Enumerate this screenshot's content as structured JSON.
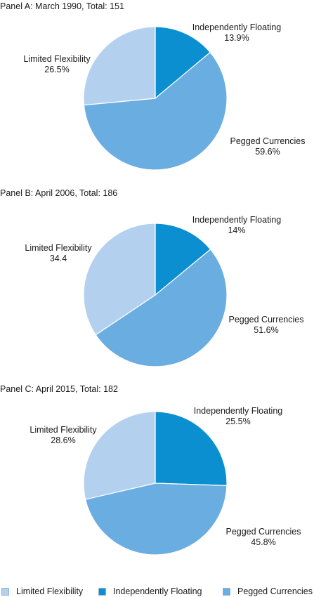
{
  "colors": {
    "limited": "#b3d1ee",
    "floating": "#0b8fd0",
    "pegged": "#6aade1",
    "stroke": "#ffffff"
  },
  "legend": [
    {
      "key": "limited",
      "label": "Limited Flexibility"
    },
    {
      "key": "floating",
      "label": "Independently Floating"
    },
    {
      "key": "pegged",
      "label": "Pegged Currencies"
    }
  ],
  "chart_data": [
    {
      "type": "pie",
      "title": "Panel A: March 1990, Total: 151",
      "slices": [
        {
          "key": "floating",
          "name": "Independently Floating",
          "value": 13.9,
          "label": "13.9%"
        },
        {
          "key": "pegged",
          "name": "Pegged Currencies",
          "value": 59.6,
          "label": "59.6%"
        },
        {
          "key": "limited",
          "name": "Limited Flexibility",
          "value": 26.5,
          "label": "26.5%"
        }
      ]
    },
    {
      "type": "pie",
      "title": "Panel B: April 2006, Total: 186",
      "slices": [
        {
          "key": "floating",
          "name": "Independently Floating",
          "value": 14,
          "label": "14%"
        },
        {
          "key": "pegged",
          "name": "Pegged Currencies",
          "value": 51.6,
          "label": "51.6%"
        },
        {
          "key": "limited",
          "name": "Limited Flexibility",
          "value": 34.4,
          "label": "34.4"
        }
      ]
    },
    {
      "type": "pie",
      "title": "Panel C: April 2015, Total: 182",
      "slices": [
        {
          "key": "floating",
          "name": "Independently Floating",
          "value": 25.5,
          "label": "25.5%"
        },
        {
          "key": "pegged",
          "name": "Pegged Currencies",
          "value": 45.8,
          "label": "45.8%"
        },
        {
          "key": "limited",
          "name": "Limited Flexibility",
          "value": 28.6,
          "label": "28.6%"
        }
      ]
    }
  ]
}
